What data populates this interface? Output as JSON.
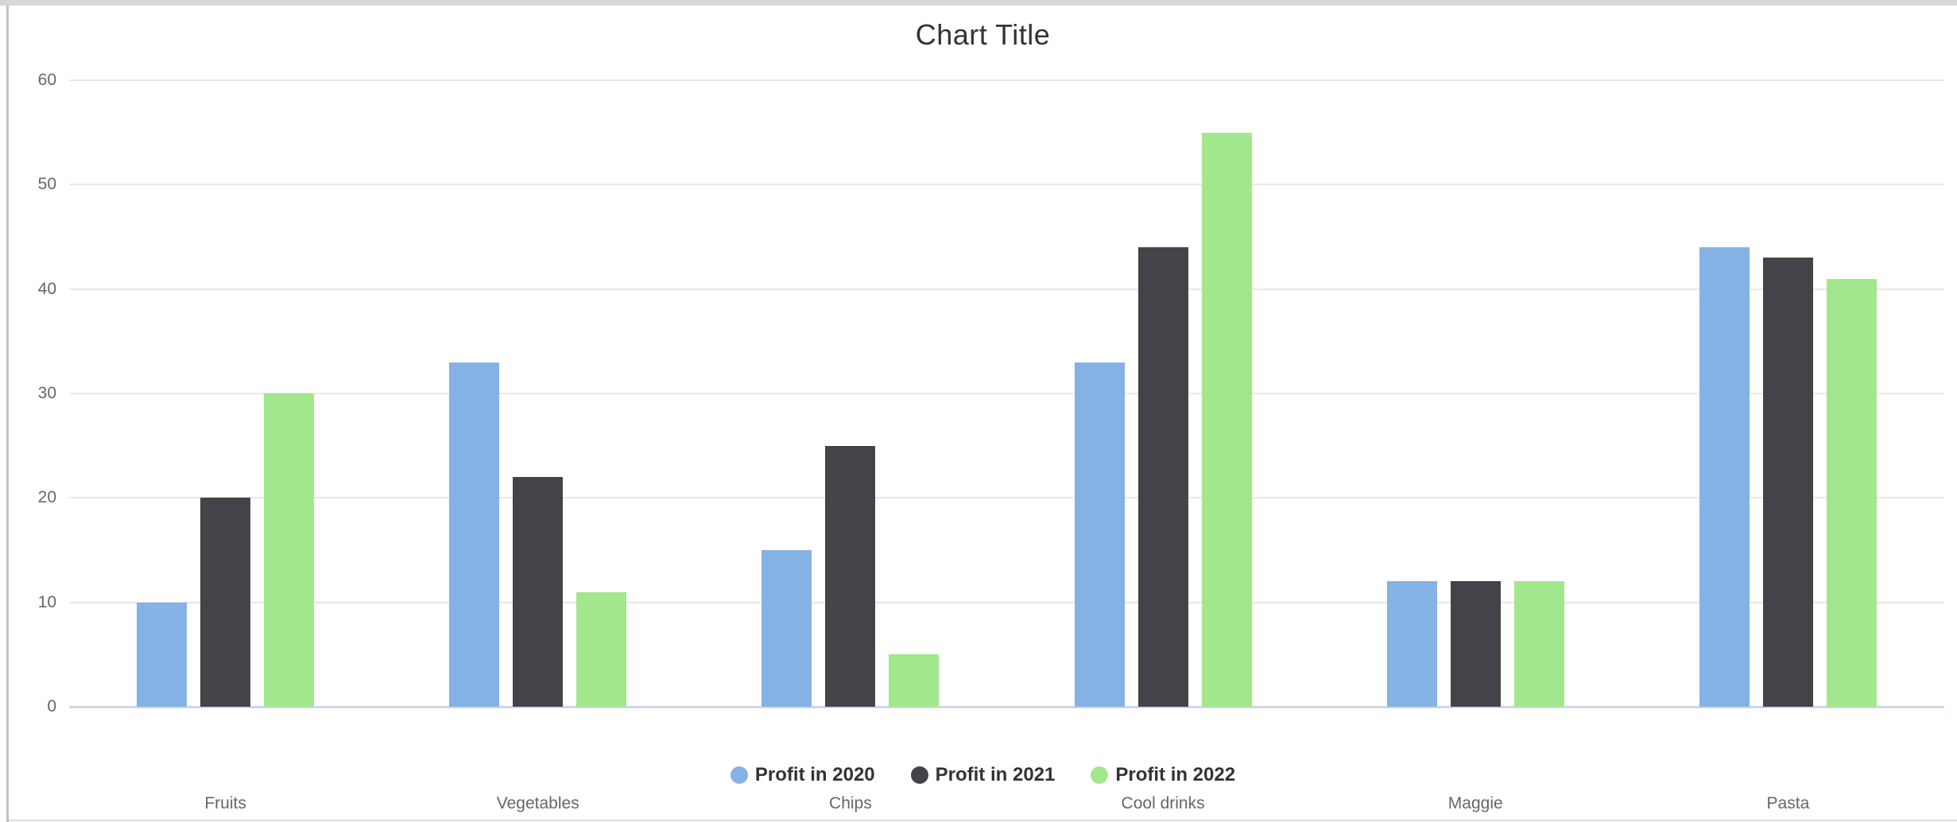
{
  "page": {
    "background": "#ffffff",
    "frame_colors": {
      "top": "#d7d7d7",
      "left": "#c2c2c2",
      "bottom": "#dcdcdc"
    }
  },
  "chart_data": {
    "type": "bar",
    "title": "Chart Title",
    "categories": [
      "Fruits",
      "Vegetables",
      "Chips",
      "Cool drinks",
      "Maggie",
      "Pasta"
    ],
    "series": [
      {
        "name": "Profit in 2020",
        "color": "#84b2e4",
        "values": [
          10,
          33,
          15,
          33,
          12,
          44
        ]
      },
      {
        "name": "Profit in 2021",
        "color": "#434449",
        "values": [
          20,
          22,
          25,
          44,
          12,
          43
        ]
      },
      {
        "name": "Profit in 2022",
        "color": "#a3e78c",
        "values": [
          30,
          11,
          5,
          55,
          12,
          41
        ]
      }
    ],
    "xlabel": "",
    "ylabel": "",
    "ylim": [
      0,
      60
    ],
    "yticks": [
      0,
      10,
      20,
      30,
      40,
      50,
      60
    ],
    "grid": true,
    "legend_position": "bottom",
    "colors": {
      "gridline": "#e7e7e7",
      "axis_line": "#ccd6eb",
      "title_text": "#333333",
      "axis_label_text": "#666666",
      "legend_text": "#333333"
    }
  }
}
